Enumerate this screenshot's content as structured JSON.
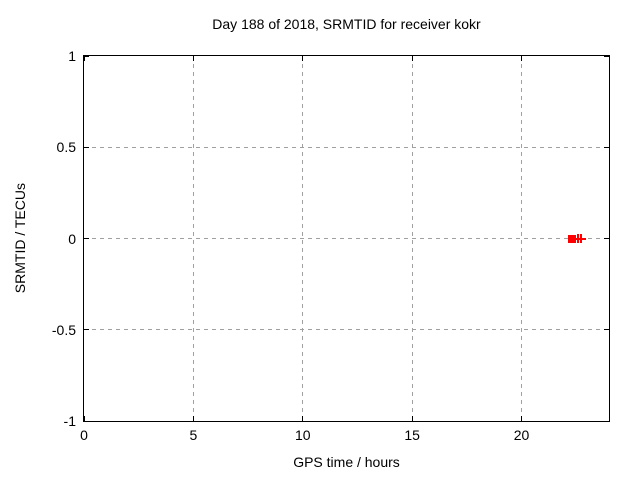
{
  "colors": {
    "background": "#ffffff",
    "text": "#000000",
    "plot_border": "#000000",
    "grid": "#a0a0a0",
    "marker_red": "#ff0000"
  },
  "chart_data": {
    "type": "scatter",
    "title": "Day 188 of 2018, SRMTID for receiver kokr",
    "xlabel": "GPS time / hours",
    "ylabel": "SRMTID / TECUs",
    "xlim": [
      0,
      24
    ],
    "ylim": [
      -1,
      1
    ],
    "x_ticks": [
      0,
      5,
      10,
      15,
      20
    ],
    "y_ticks": [
      1,
      0.5,
      0,
      -0.5,
      -1
    ],
    "grid": true,
    "grid_style": "dashed",
    "legend": "none",
    "series": [
      {
        "name": "srmtid-square-point",
        "marker": "filled-square",
        "color": "#ff0000",
        "points": [
          [
            22.33,
            0
          ]
        ]
      },
      {
        "name": "srmtid-plus-points",
        "marker": "plus",
        "color": "#ff0000",
        "points": [
          [
            22.58,
            0
          ],
          [
            22.72,
            0
          ]
        ]
      }
    ]
  }
}
